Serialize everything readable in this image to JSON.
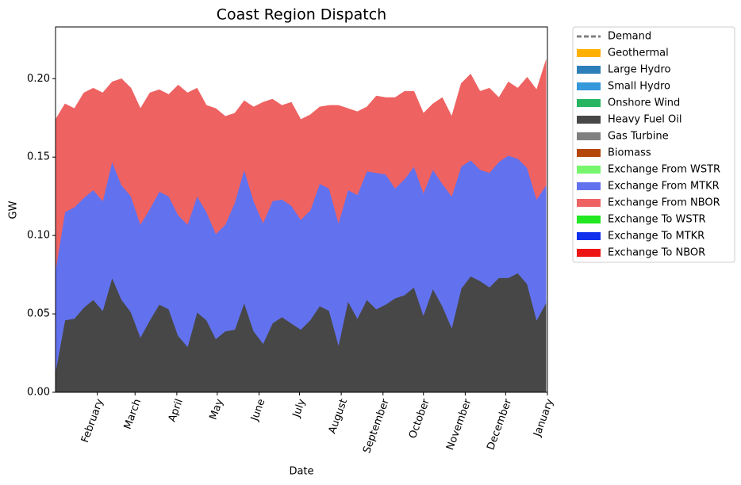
{
  "chart_data": {
    "type": "stacked_area",
    "title": "Coast Region Dispatch",
    "xlabel": "Date",
    "ylabel": "GW",
    "x": [
      0,
      7,
      14,
      21,
      28,
      35,
      42,
      49,
      56,
      63,
      70,
      77,
      84,
      91,
      98,
      105,
      112,
      119,
      126,
      133,
      140,
      147,
      154,
      161,
      168,
      175,
      182,
      189,
      196,
      203,
      210,
      217,
      224,
      231,
      238,
      245,
      252,
      259,
      266,
      273,
      280,
      287,
      294,
      301,
      308,
      315,
      322,
      329,
      336,
      343,
      350,
      357,
      364
    ],
    "xlim": [
      0,
      365
    ],
    "xticks": [
      {
        "value": 31,
        "label": "February"
      },
      {
        "value": 59,
        "label": "March"
      },
      {
        "value": 90,
        "label": "April"
      },
      {
        "value": 120,
        "label": "May"
      },
      {
        "value": 151,
        "label": "June"
      },
      {
        "value": 181,
        "label": "July"
      },
      {
        "value": 212,
        "label": "August"
      },
      {
        "value": 243,
        "label": "September"
      },
      {
        "value": 273,
        "label": "October"
      },
      {
        "value": 304,
        "label": "November"
      },
      {
        "value": 334,
        "label": "December"
      },
      {
        "value": 365,
        "label": "January"
      }
    ],
    "ylim": [
      0,
      0.233
    ],
    "yticks": [
      {
        "value": 0,
        "label": "0.00"
      },
      {
        "value": 0.05,
        "label": "0.05"
      },
      {
        "value": 0.1,
        "label": "0.10"
      },
      {
        "value": 0.15,
        "label": "0.15"
      },
      {
        "value": 0.2,
        "label": "0.20"
      }
    ],
    "legend": "outside right",
    "series": [
      {
        "name": "Demand",
        "color": "#808080",
        "style": "dashed"
      },
      {
        "name": "Geothermal",
        "color": "#ffb000"
      },
      {
        "name": "Large Hydro",
        "color": "#2c7fb8"
      },
      {
        "name": "Small Hydro",
        "color": "#3498db"
      },
      {
        "name": "Onshore Wind",
        "color": "#27b562"
      },
      {
        "name": "Heavy Fuel Oil",
        "color": "#474747",
        "values": [
          0.013,
          0.046,
          0.047,
          0.054,
          0.059,
          0.052,
          0.073,
          0.059,
          0.051,
          0.035,
          0.046,
          0.056,
          0.053,
          0.036,
          0.029,
          0.051,
          0.046,
          0.034,
          0.039,
          0.04,
          0.057,
          0.039,
          0.031,
          0.044,
          0.048,
          0.044,
          0.04,
          0.046,
          0.055,
          0.052,
          0.03,
          0.058,
          0.047,
          0.059,
          0.053,
          0.056,
          0.06,
          0.062,
          0.067,
          0.049,
          0.066,
          0.055,
          0.041,
          0.066,
          0.074,
          0.071,
          0.067,
          0.073,
          0.073,
          0.076,
          0.069,
          0.046,
          0.057
        ]
      },
      {
        "name": "Gas Turbine",
        "color": "#808080"
      },
      {
        "name": "Biomass",
        "color": "#b5470b"
      },
      {
        "name": "Exchange From WSTR",
        "color": "#77f56d"
      },
      {
        "name": "Exchange From MTKR",
        "color": "#6272ee",
        "values": [
          0.065,
          0.069,
          0.071,
          0.07,
          0.07,
          0.07,
          0.074,
          0.073,
          0.074,
          0.072,
          0.071,
          0.072,
          0.072,
          0.077,
          0.078,
          0.074,
          0.069,
          0.067,
          0.068,
          0.081,
          0.085,
          0.083,
          0.077,
          0.078,
          0.075,
          0.075,
          0.07,
          0.07,
          0.078,
          0.078,
          0.078,
          0.071,
          0.079,
          0.082,
          0.087,
          0.083,
          0.07,
          0.074,
          0.077,
          0.078,
          0.076,
          0.078,
          0.084,
          0.078,
          0.074,
          0.071,
          0.073,
          0.074,
          0.078,
          0.073,
          0.074,
          0.077,
          0.075
        ]
      },
      {
        "name": "Exchange From NBOR",
        "color": "#ee6262",
        "values": [
          0.096,
          0.069,
          0.063,
          0.067,
          0.065,
          0.069,
          0.051,
          0.068,
          0.069,
          0.074,
          0.074,
          0.065,
          0.065,
          0.083,
          0.084,
          0.069,
          0.068,
          0.08,
          0.069,
          0.057,
          0.044,
          0.06,
          0.077,
          0.065,
          0.06,
          0.066,
          0.064,
          0.061,
          0.049,
          0.053,
          0.075,
          0.052,
          0.053,
          0.041,
          0.049,
          0.049,
          0.058,
          0.056,
          0.048,
          0.051,
          0.042,
          0.055,
          0.051,
          0.053,
          0.055,
          0.05,
          0.054,
          0.041,
          0.047,
          0.045,
          0.058,
          0.07,
          0.08
        ]
      },
      {
        "name": "Exchange To WSTR",
        "color": "#22e822"
      },
      {
        "name": "Exchange To MTKR",
        "color": "#1030ee"
      },
      {
        "name": "Exchange To NBOR",
        "color": "#ee1515"
      }
    ]
  }
}
